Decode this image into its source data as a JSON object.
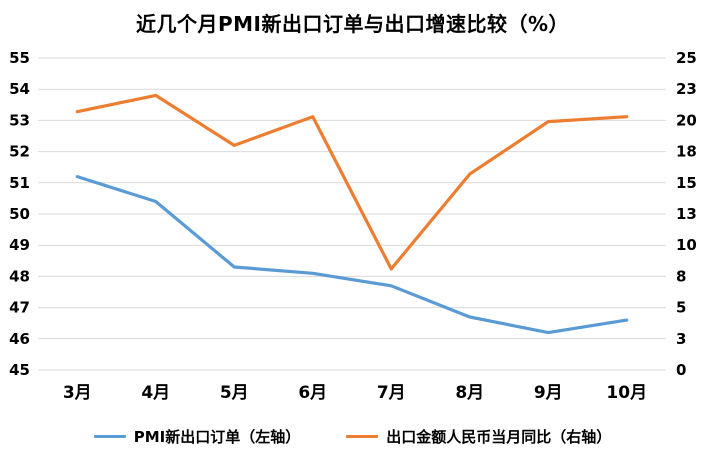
{
  "title": "近几个月PMI新出口订单与出口增速比较（%）",
  "chart_data": {
    "type": "line",
    "categories": [
      "3月",
      "4月",
      "5月",
      "6月",
      "7月",
      "8月",
      "9月",
      "10月"
    ],
    "series": [
      {
        "name": "PMI新出口订单（左轴）",
        "axis": "left",
        "color": "#5B9BD5",
        "values": [
          51.2,
          50.4,
          48.3,
          48.1,
          47.7,
          46.7,
          46.2,
          46.6
        ]
      },
      {
        "name": "出口金额人民币当月同比（右轴）",
        "axis": "right",
        "color": "#ED7D31",
        "values": [
          20.7,
          22.0,
          18.0,
          20.3,
          8.1,
          15.7,
          19.9,
          20.3
        ]
      }
    ],
    "left_axis": {
      "min": 45,
      "max": 55,
      "ticks": [
        45,
        46,
        47,
        48,
        49,
        50,
        51,
        52,
        53,
        54,
        55
      ]
    },
    "right_axis": {
      "min": 0,
      "max": 25,
      "ticks": [
        0,
        3,
        5,
        8,
        10,
        13,
        15,
        18,
        20,
        23,
        25
      ]
    },
    "grid": true,
    "gridline_color": "#D9D9D9",
    "legend_position": "bottom"
  }
}
